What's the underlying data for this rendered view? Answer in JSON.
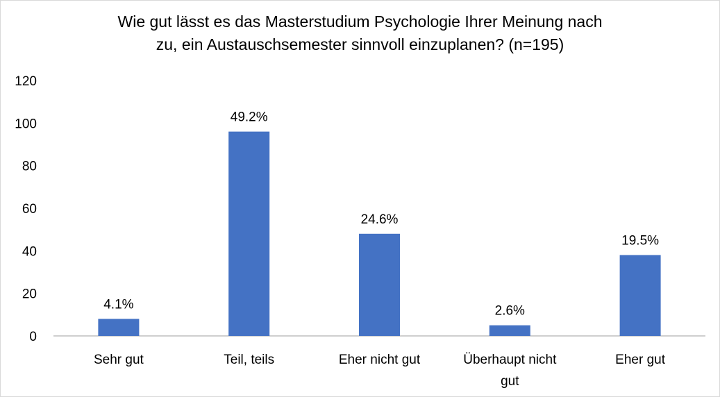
{
  "chart_data": {
    "type": "bar",
    "title_lines": [
      "Wie gut lässt es das Masterstudium Psychologie Ihrer Meinung nach",
      "zu, ein Austauschsemester sinnvoll einzuplanen? (n=195)"
    ],
    "categories": [
      [
        "Sehr gut"
      ],
      [
        "Teil, teils"
      ],
      [
        "Eher nicht gut"
      ],
      [
        "Überhaupt nicht",
        "gut"
      ],
      [
        "Eher gut"
      ]
    ],
    "values": [
      8,
      96,
      48,
      5,
      38
    ],
    "data_labels": [
      "4.1%",
      "49.2%",
      "24.6%",
      "2.6%",
      "19.5%"
    ],
    "y_ticks": [
      "0",
      "20",
      "40",
      "60",
      "80",
      "100",
      "120"
    ],
    "ylim": [
      0,
      120
    ],
    "grid": false,
    "legend": "none",
    "bar_color": "#4472C4",
    "axis_color": "#bfbfbf"
  }
}
